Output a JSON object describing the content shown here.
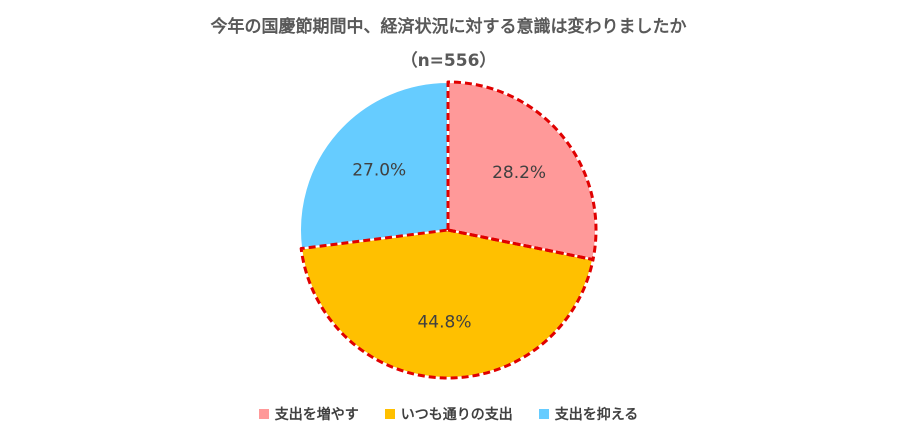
{
  "chart_data": {
    "type": "pie",
    "title": "今年の国慶節期間中、経済状況に対する意識は変わりましたか",
    "subtitle": "（n=556）",
    "slices": [
      {
        "label": "支出を増やす",
        "value": 28.2,
        "display": "28.2%",
        "color": "#FF9999"
      },
      {
        "label": "いつも通りの支出",
        "value": 44.8,
        "display": "44.8%",
        "color": "#FFC000"
      },
      {
        "label": "支出を抑える",
        "value": 27.0,
        "display": "27.0%",
        "color": "#66CCFF"
      }
    ],
    "highlight": {
      "slices": [
        "支出を増やす",
        "いつも通りの支出"
      ],
      "outline_color": "#E00000",
      "style": "dashed"
    },
    "legend_position": "bottom"
  }
}
